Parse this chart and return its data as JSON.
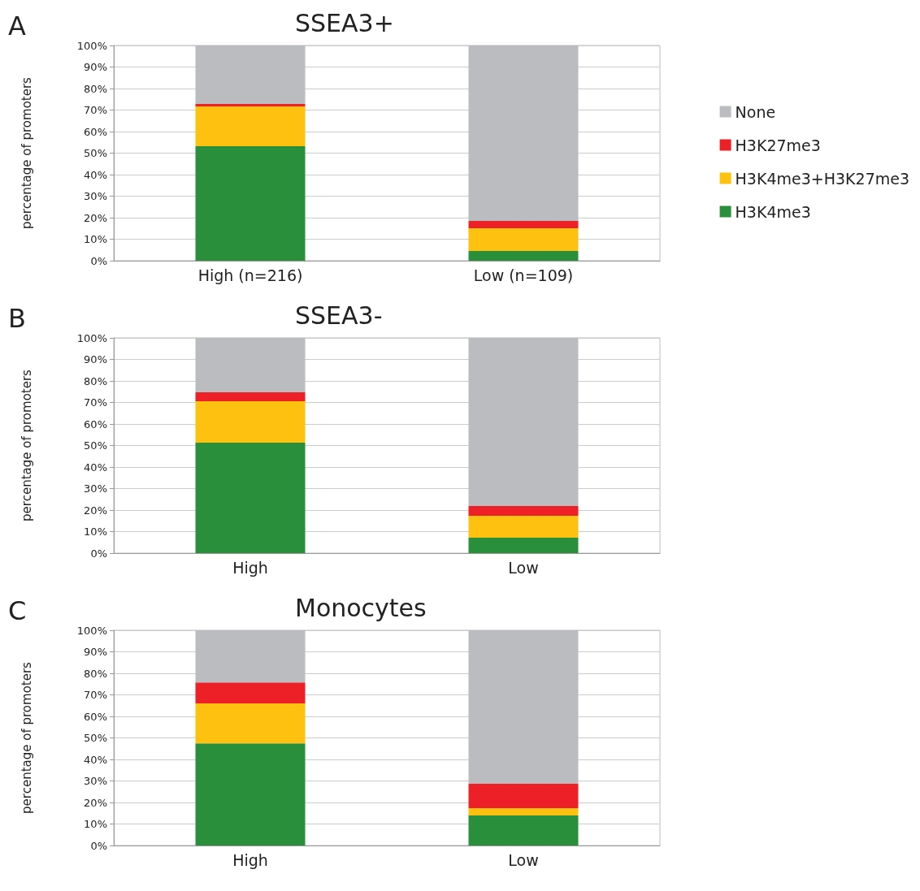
{
  "chart_data": [
    {
      "type": "bar",
      "title": "SSEA3+",
      "annotations": [
        "A"
      ],
      "ylabel": "percentage of promoters",
      "categories": [
        "High (n=216)",
        "Low (n=109)"
      ],
      "stacked": true,
      "legend": "right",
      "grid": "y",
      "ylim": [
        0,
        100
      ],
      "yticks": [
        {
          "value": 0,
          "label": "0%"
        },
        {
          "value": 10,
          "label": "10%"
        },
        {
          "value": 20,
          "label": "20%"
        },
        {
          "value": 30,
          "label": "30%"
        },
        {
          "value": 40,
          "label": "40%"
        },
        {
          "value": 50,
          "label": "50%"
        },
        {
          "value": 60,
          "label": "60%"
        },
        {
          "value": 70,
          "label": "70%"
        },
        {
          "value": 80,
          "label": "80%"
        },
        {
          "value": 90,
          "label": "90%"
        },
        {
          "value": 100,
          "label": "100%"
        }
      ],
      "series": [
        {
          "name": "H3K4me3",
          "color": "#2a8f3a",
          "values": [
            53.2,
            4.5
          ]
        },
        {
          "name": "H3K4me3+H3K27me3",
          "color": "#fec110",
          "values": [
            18.5,
            10.6
          ]
        },
        {
          "name": "H3K27me3",
          "color": "#ee2027",
          "values": [
            1.1,
            3.4
          ]
        },
        {
          "name": "None",
          "color": "#bbbcbf",
          "values": [
            27.2,
            81.5
          ]
        }
      ]
    },
    {
      "type": "bar",
      "title": "SSEA3-",
      "annotations": [
        "B"
      ],
      "ylabel": "percentage of promoters",
      "categories": [
        "High",
        "Low"
      ],
      "stacked": true,
      "grid": "y",
      "ylim": [
        0,
        100
      ],
      "yticks": [
        {
          "value": 0,
          "label": "0%"
        },
        {
          "value": 10,
          "label": "10%"
        },
        {
          "value": 20,
          "label": "20%"
        },
        {
          "value": 30,
          "label": "30%"
        },
        {
          "value": 40,
          "label": "40%"
        },
        {
          "value": 50,
          "label": "50%"
        },
        {
          "value": 60,
          "label": "60%"
        },
        {
          "value": 70,
          "label": "70%"
        },
        {
          "value": 80,
          "label": "80%"
        },
        {
          "value": 90,
          "label": "90%"
        },
        {
          "value": 100,
          "label": "100%"
        }
      ],
      "series": [
        {
          "color": "#2a8f3a",
          "values": [
            51.3,
            7.2
          ]
        },
        {
          "color": "#fec110",
          "values": [
            19.3,
            10.2
          ]
        },
        {
          "color": "#ee2027",
          "values": [
            4.1,
            4.5
          ]
        },
        {
          "color": "#bbbcbf",
          "values": [
            25.3,
            78.1
          ]
        }
      ]
    },
    {
      "type": "bar",
      "title": "Monocytes",
      "annotations": [
        "C"
      ],
      "ylabel": "percentage of promoters",
      "categories": [
        "High",
        "Low"
      ],
      "stacked": true,
      "grid": "y",
      "ylim": [
        0,
        100
      ],
      "yticks": [
        {
          "value": 0,
          "label": "0%"
        },
        {
          "value": 10,
          "label": "10%"
        },
        {
          "value": 20,
          "label": "20%"
        },
        {
          "value": 30,
          "label": "30%"
        },
        {
          "value": 40,
          "label": "40%"
        },
        {
          "value": 50,
          "label": "50%"
        },
        {
          "value": 60,
          "label": "60%"
        },
        {
          "value": 70,
          "label": "70%"
        },
        {
          "value": 80,
          "label": "80%"
        },
        {
          "value": 90,
          "label": "90%"
        },
        {
          "value": 100,
          "label": "100%"
        }
      ],
      "series": [
        {
          "color": "#2a8f3a",
          "values": [
            47.5,
            14.0
          ]
        },
        {
          "color": "#fec110",
          "values": [
            18.5,
            3.4
          ]
        },
        {
          "color": "#ee2027",
          "values": [
            9.8,
            11.3
          ]
        },
        {
          "color": "#bbbcbf",
          "values": [
            24.2,
            71.3
          ]
        }
      ]
    }
  ]
}
